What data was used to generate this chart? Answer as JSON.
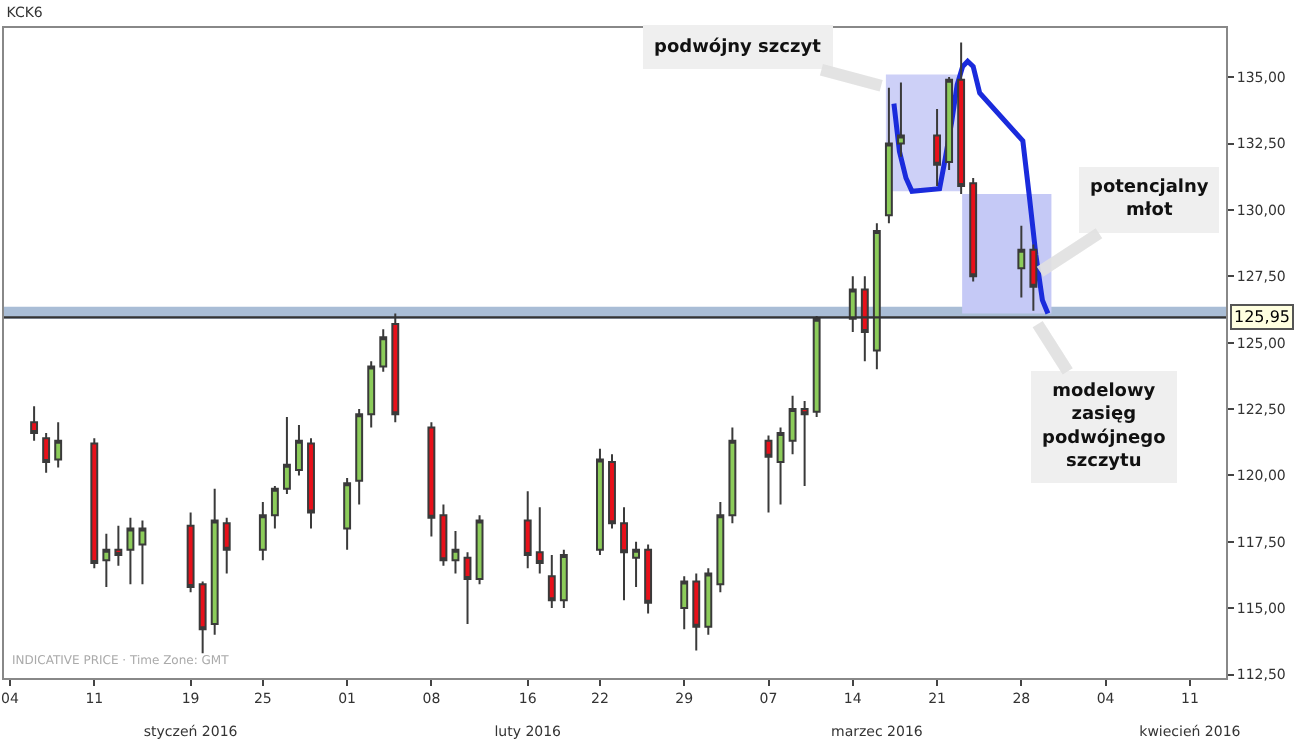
{
  "chart_data": {
    "type": "candlestick",
    "title": "KCK6",
    "x": [
      "2016-01-06",
      "2016-01-07",
      "2016-01-08",
      "2016-01-11",
      "2016-01-12",
      "2016-01-13",
      "2016-01-14",
      "2016-01-15",
      "2016-01-19",
      "2016-01-20",
      "2016-01-21",
      "2016-01-22",
      "2016-01-25",
      "2016-01-26",
      "2016-01-27",
      "2016-01-28",
      "2016-01-29",
      "2016-02-01",
      "2016-02-02",
      "2016-02-03",
      "2016-02-04",
      "2016-02-05",
      "2016-02-08",
      "2016-02-09",
      "2016-02-10",
      "2016-02-11",
      "2016-02-12",
      "2016-02-16",
      "2016-02-17",
      "2016-02-18",
      "2016-02-19",
      "2016-02-22",
      "2016-02-23",
      "2016-02-24",
      "2016-02-25",
      "2016-02-26",
      "2016-02-29",
      "2016-03-01",
      "2016-03-02",
      "2016-03-03",
      "2016-03-04",
      "2016-03-07",
      "2016-03-08",
      "2016-03-09",
      "2016-03-10",
      "2016-03-11",
      "2016-03-14",
      "2016-03-15",
      "2016-03-16",
      "2016-03-17",
      "2016-03-18",
      "2016-03-21",
      "2016-03-22",
      "2016-03-23",
      "2016-03-24",
      "2016-03-28",
      "2016-03-29"
    ],
    "ohlc": [
      [
        122.0,
        122.6,
        121.3,
        121.6
      ],
      [
        121.4,
        121.6,
        120.1,
        120.5
      ],
      [
        120.6,
        122.0,
        120.3,
        121.3
      ],
      [
        121.2,
        121.4,
        116.5,
        116.7
      ],
      [
        116.8,
        117.8,
        115.8,
        117.2
      ],
      [
        117.2,
        118.1,
        116.6,
        117.0
      ],
      [
        117.2,
        118.4,
        115.9,
        118.0
      ],
      [
        117.4,
        118.3,
        115.9,
        118.0
      ],
      [
        118.1,
        118.6,
        115.6,
        115.8
      ],
      [
        115.9,
        116.0,
        113.3,
        114.2
      ],
      [
        114.4,
        119.5,
        114.0,
        118.3
      ],
      [
        118.2,
        118.4,
        116.3,
        117.2
      ],
      [
        117.2,
        119.0,
        116.8,
        118.5
      ],
      [
        118.5,
        119.6,
        118.0,
        119.5
      ],
      [
        119.5,
        122.2,
        119.3,
        120.4
      ],
      [
        120.2,
        121.9,
        120.0,
        121.3
      ],
      [
        121.2,
        121.4,
        118.0,
        118.6
      ],
      [
        118.0,
        119.9,
        117.2,
        119.7
      ],
      [
        119.8,
        122.5,
        118.9,
        122.3
      ],
      [
        122.3,
        124.3,
        121.8,
        124.1
      ],
      [
        124.1,
        125.5,
        123.9,
        125.2
      ],
      [
        125.7,
        126.1,
        122.0,
        122.3
      ],
      [
        121.8,
        122.0,
        117.7,
        118.4
      ],
      [
        118.5,
        118.9,
        116.6,
        116.8
      ],
      [
        116.8,
        117.9,
        116.3,
        117.2
      ],
      [
        116.9,
        117.1,
        114.4,
        116.1
      ],
      [
        116.1,
        118.5,
        115.9,
        118.3
      ],
      [
        118.3,
        119.4,
        116.5,
        117.0
      ],
      [
        117.1,
        118.8,
        116.3,
        116.7
      ],
      [
        116.2,
        117.0,
        115.0,
        115.3
      ],
      [
        115.3,
        117.2,
        115.0,
        117.0
      ],
      [
        117.2,
        121.0,
        117.0,
        120.6
      ],
      [
        120.5,
        120.8,
        118.0,
        118.2
      ],
      [
        118.2,
        118.8,
        115.3,
        117.1
      ],
      [
        116.9,
        117.5,
        115.8,
        117.2
      ],
      [
        117.2,
        117.4,
        114.8,
        115.2
      ],
      [
        115.0,
        116.2,
        114.2,
        116.0
      ],
      [
        116.0,
        116.3,
        113.4,
        114.3
      ],
      [
        114.3,
        116.5,
        114.0,
        116.3
      ],
      [
        115.9,
        119.0,
        115.6,
        118.5
      ],
      [
        118.5,
        121.8,
        118.2,
        121.3
      ],
      [
        121.3,
        121.5,
        118.6,
        120.7
      ],
      [
        120.5,
        121.8,
        118.9,
        121.6
      ],
      [
        121.3,
        123.0,
        120.8,
        122.5
      ],
      [
        122.5,
        122.8,
        119.6,
        122.3
      ],
      [
        122.4,
        126.0,
        122.2,
        125.9
      ],
      [
        125.9,
        127.5,
        125.4,
        127.0
      ],
      [
        127.0,
        127.5,
        124.3,
        125.4
      ],
      [
        124.7,
        129.5,
        124.0,
        129.2
      ],
      [
        129.8,
        134.6,
        129.5,
        132.5
      ],
      [
        132.5,
        134.8,
        132.0,
        132.8
      ],
      [
        132.8,
        133.8,
        130.9,
        131.7
      ],
      [
        131.8,
        135.0,
        131.5,
        134.9
      ],
      [
        134.9,
        136.3,
        130.6,
        130.9
      ],
      [
        131.0,
        131.2,
        127.3,
        127.5
      ],
      [
        127.8,
        129.4,
        126.7,
        128.5
      ],
      [
        128.5,
        128.7,
        126.2,
        127.1
      ]
    ],
    "colors": [
      "#e8101a",
      "#e8101a",
      "#8ccc5a",
      "#e8101a",
      "#8ccc5a",
      "#e8101a",
      "#8ccc5a",
      "#8ccc5a",
      "#e8101a",
      "#e8101a",
      "#8ccc5a",
      "#e8101a",
      "#8ccc5a",
      "#8ccc5a",
      "#8ccc5a",
      "#8ccc5a",
      "#e8101a",
      "#8ccc5a",
      "#8ccc5a",
      "#8ccc5a",
      "#8ccc5a",
      "#e8101a",
      "#e8101a",
      "#e8101a",
      "#8ccc5a",
      "#e8101a",
      "#8ccc5a",
      "#e8101a",
      "#e8101a",
      "#e8101a",
      "#8ccc5a",
      "#8ccc5a",
      "#e8101a",
      "#e8101a",
      "#8ccc5a",
      "#e8101a",
      "#8ccc5a",
      "#e8101a",
      "#8ccc5a",
      "#8ccc5a",
      "#8ccc5a",
      "#e8101a",
      "#8ccc5a",
      "#8ccc5a",
      "#e8101a",
      "#8ccc5a",
      "#8ccc5a",
      "#e8101a",
      "#8ccc5a",
      "#8ccc5a",
      "#8ccc5a",
      "#e8101a",
      "#8ccc5a",
      "#e8101a",
      "#e8101a",
      "#8ccc5a",
      "#e8101a"
    ],
    "series": [
      {
        "type": "area",
        "color": "#cdd0f7",
        "x": [
          "2016-03-16T18:00",
          "2016-03-16T18:00",
          "2016-03-22T22:00",
          "2016-03-22T22:00",
          "2016-03-16T18:00"
        ],
        "values": [
          130.7,
          135.1,
          135.1,
          130.7,
          130.7
        ]
      },
      {
        "type": "area",
        "color": "#c5c9f6",
        "x": [
          "2016-03-23T02:00",
          "2016-03-23T02:00",
          "2016-03-30T12:00",
          "2016-03-30T12:00",
          "2016-03-23T02:00"
        ],
        "values": [
          126.1,
          130.6,
          130.6,
          126.1,
          126.1
        ]
      },
      {
        "type": "line",
        "color": "#1a2bdc",
        "x": [
          "2016-03-17T10:00",
          "2016-03-17T21:00",
          "2016-03-18T10:00",
          "2016-03-18T22:00",
          "2016-03-21T05:00",
          "2016-03-21T16:00",
          "2016-03-22T05:00",
          "2016-03-22T16:00",
          "2016-03-23T03:00",
          "2016-03-23T13:00",
          "2016-03-24T00:00",
          "2016-03-24T13:00",
          "2016-03-28T03:00",
          "2016-03-28T16:00",
          "2016-03-29T05:00",
          "2016-03-29T18:00",
          "2016-03-30T05:00"
        ],
        "values": [
          134.0,
          132.2,
          131.2,
          130.7,
          130.8,
          131.9,
          133.3,
          134.7,
          135.4,
          135.6,
          135.4,
          134.4,
          132.6,
          130.5,
          128.3,
          126.6,
          126.1
        ]
      }
    ],
    "xlim": [
      "2016-01-03T12:00",
      "2016-04-14"
    ],
    "x2lim": [
      "2016-01-03T12:00",
      "2016-04-14"
    ],
    "xticks": [
      {
        "value": "2016-01-04",
        "label": "04"
      },
      {
        "value": "2016-01-11",
        "label": "11"
      },
      {
        "value": "2016-01-19",
        "label": "19"
      },
      {
        "value": "2016-01-25",
        "label": "25"
      },
      {
        "value": "2016-02-01",
        "label": "01"
      },
      {
        "value": "2016-02-08",
        "label": "08"
      },
      {
        "value": "2016-02-16",
        "label": "16"
      },
      {
        "value": "2016-02-22",
        "label": "22"
      },
      {
        "value": "2016-02-29",
        "label": "29"
      },
      {
        "value": "2016-03-07",
        "label": "07"
      },
      {
        "value": "2016-03-14",
        "label": "14"
      },
      {
        "value": "2016-03-21",
        "label": "21"
      },
      {
        "value": "2016-03-28",
        "label": "28"
      },
      {
        "value": "2016-04-04",
        "label": "04"
      },
      {
        "value": "2016-04-11",
        "label": "11"
      }
    ],
    "x2ticks": [
      {
        "value": "2016-01-19",
        "label": "styczeń 2016"
      },
      {
        "value": "2016-02-16",
        "label": "luty 2016"
      },
      {
        "value": "2016-03-16",
        "label": "marzec 2016"
      },
      {
        "value": "2016-04-11",
        "label": "kwiecień 2016"
      }
    ],
    "ylim": [
      112.35,
      136.85
    ],
    "yticks": [
      {
        "value": 112.5,
        "label": "112,50"
      },
      {
        "value": 115,
        "label": "115,00"
      },
      {
        "value": 117.5,
        "label": "117,50"
      },
      {
        "value": 120,
        "label": "120,00"
      },
      {
        "value": 122.5,
        "label": "122,50"
      },
      {
        "value": 125,
        "label": "125,00"
      },
      {
        "value": 127.5,
        "label": "127,50"
      },
      {
        "value": 130,
        "label": "130,00"
      },
      {
        "value": 132.5,
        "label": "132,50"
      },
      {
        "value": 135,
        "label": "135,00"
      }
    ],
    "bands": [
      {
        "axis": "y",
        "from": 125.9,
        "to": 126.35,
        "color": "#a9bdd6"
      }
    ],
    "ref_lines": [
      {
        "axis": "y",
        "value": 125.95,
        "label": "125,95",
        "color": "#333333"
      }
    ],
    "annotations": [
      {
        "text": "podwójny szczyt",
        "x": "2016-03-17",
        "y": 134.6
      },
      {
        "text": "potencjalny\nmłot",
        "x": "2016-03-29",
        "y": 127.5
      },
      {
        "text": "modelowy\nzasięg\npodwójnego\nszczytu",
        "x": "2016-03-29",
        "y": 125.95
      },
      "INDICATIVE PRICE · Time Zone: GMT"
    ],
    "grid": false
  }
}
